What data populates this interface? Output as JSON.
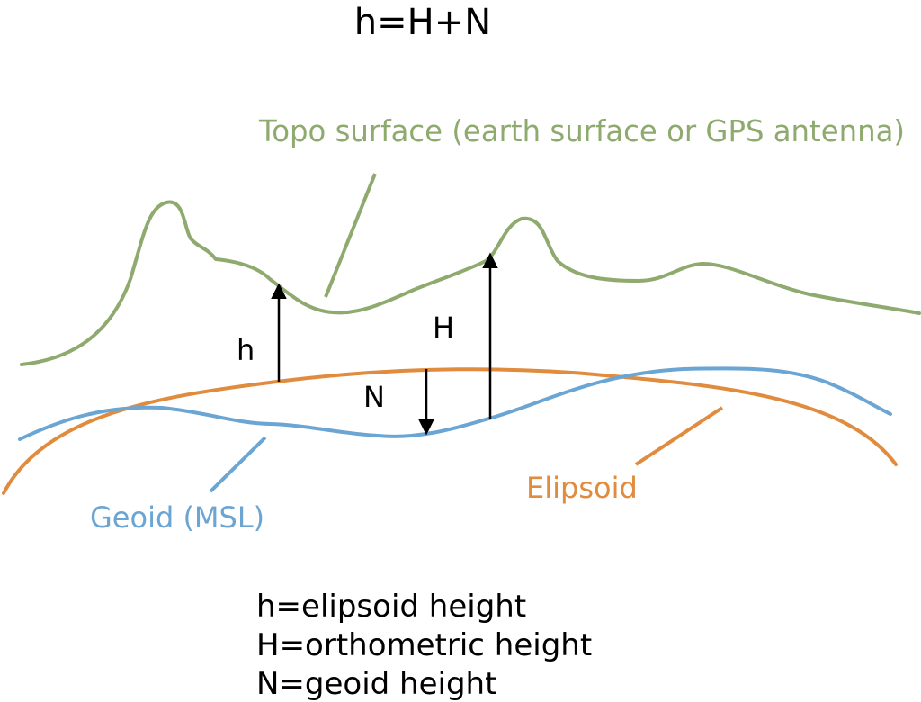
{
  "title": "h=H+N",
  "labels": {
    "topo": "Topo surface (earth surface or GPS antenna)",
    "geoid": "Geoid (MSL)",
    "ellipsoid": "Elipsoid",
    "h": "h",
    "H": "H",
    "N": "N"
  },
  "legend": [
    "h=elipsoid height",
    "H=orthometric height",
    "N=geoid height"
  ],
  "colors": {
    "topo": "#8FAA6E",
    "geoid": "#6BA5D4",
    "ellipsoid": "#E08B3E",
    "text": "#000000",
    "arrow": "#000000"
  }
}
